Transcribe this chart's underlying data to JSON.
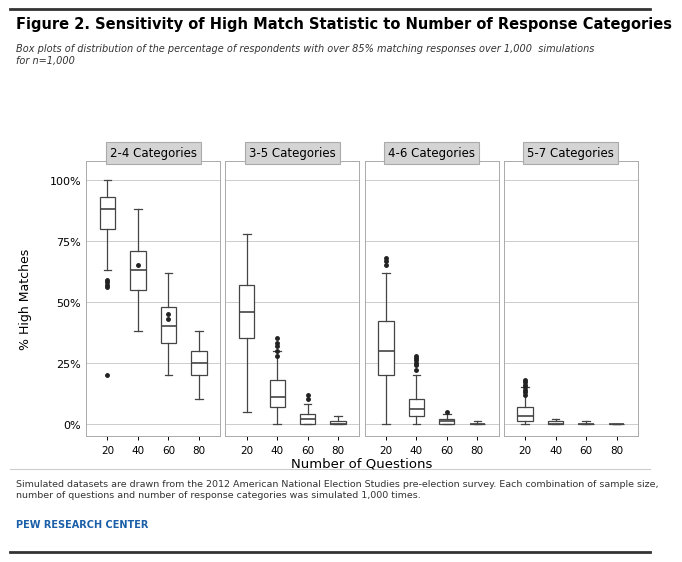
{
  "title": "Figure 2. Sensitivity of High Match Statistic to Number of Response Categories",
  "subtitle": "Box plots of distribution of the percentage of respondents with over 85% matching responses over 1,000  simulations\nfor n=1,000",
  "footnote": "Simulated datasets are drawn from the 2012 American National Election Studies pre-election survey. Each combination of sample size,\nnumber of questions and number of response categories was simulated 1,000 times.",
  "source": "PEW RESEARCH CENTER",
  "xlabel": "Number of Questions",
  "ylabel": "% High Matches",
  "panels": [
    "2-4 Categories",
    "3-5 Categories",
    "4-6 Categories",
    "5-7 Categories"
  ],
  "x_labels": [
    "20",
    "40",
    "60",
    "80"
  ],
  "ylim": [
    -5,
    108
  ],
  "yticks": [
    0,
    25,
    50,
    75,
    100
  ],
  "ytick_labels": [
    "0%",
    "25%",
    "50%",
    "75%",
    "100%"
  ],
  "background_color": "#ffffff",
  "panel_title_bg": "#d4d4d4",
  "box_face": "#ffffff",
  "box_edge": "#444444",
  "whisker_color": "#444444",
  "median_color": "#444444",
  "flier_color": "#222222",
  "grid_color": "#cccccc",
  "panel_data": [
    {
      "name": "2-4 Categories",
      "boxes": [
        {
          "q1": 80,
          "median": 88,
          "q3": 93,
          "whislo": 63,
          "whishi": 100,
          "fliers_low": [
            56,
            57,
            58,
            59,
            20
          ],
          "fliers_high": []
        },
        {
          "q1": 55,
          "median": 63,
          "q3": 71,
          "whislo": 38,
          "whishi": 88,
          "fliers_low": [],
          "fliers_high": [
            65
          ]
        },
        {
          "q1": 33,
          "median": 40,
          "q3": 48,
          "whislo": 20,
          "whishi": 62,
          "fliers_low": [],
          "fliers_high": [
            43,
            45
          ]
        },
        {
          "q1": 20,
          "median": 25,
          "q3": 30,
          "whislo": 10,
          "whishi": 38,
          "fliers_low": [],
          "fliers_high": []
        }
      ]
    },
    {
      "name": "3-5 Categories",
      "boxes": [
        {
          "q1": 35,
          "median": 46,
          "q3": 57,
          "whislo": 5,
          "whishi": 78,
          "fliers_low": [],
          "fliers_high": []
        },
        {
          "q1": 7,
          "median": 11,
          "q3": 18,
          "whislo": 0,
          "whishi": 30,
          "fliers_low": [],
          "fliers_high": [
            28,
            30,
            32,
            33,
            35
          ]
        },
        {
          "q1": 0,
          "median": 2,
          "q3": 4,
          "whislo": 0,
          "whishi": 8,
          "fliers_low": [],
          "fliers_high": [
            10,
            12
          ]
        },
        {
          "q1": 0,
          "median": 0,
          "q3": 1,
          "whislo": 0,
          "whishi": 3,
          "fliers_low": [],
          "fliers_high": []
        }
      ]
    },
    {
      "name": "4-6 Categories",
      "boxes": [
        {
          "q1": 20,
          "median": 30,
          "q3": 42,
          "whislo": 0,
          "whishi": 62,
          "fliers_low": [],
          "fliers_high": [
            65,
            67,
            68
          ]
        },
        {
          "q1": 3,
          "median": 6,
          "q3": 10,
          "whislo": 0,
          "whishi": 20,
          "fliers_low": [],
          "fliers_high": [
            22,
            24,
            25,
            26,
            27,
            28
          ]
        },
        {
          "q1": 0,
          "median": 1,
          "q3": 2,
          "whislo": 0,
          "whishi": 4,
          "fliers_low": [],
          "fliers_high": [
            5
          ]
        },
        {
          "q1": 0,
          "median": 0,
          "q3": 0,
          "whislo": 0,
          "whishi": 1,
          "fliers_low": [],
          "fliers_high": []
        }
      ]
    },
    {
      "name": "5-7 Categories",
      "boxes": [
        {
          "q1": 1,
          "median": 3,
          "q3": 7,
          "whislo": 0,
          "whishi": 15,
          "fliers_low": [],
          "fliers_high": [
            12,
            13,
            14,
            15,
            16,
            17,
            18
          ]
        },
        {
          "q1": 0,
          "median": 0,
          "q3": 1,
          "whislo": 0,
          "whishi": 2,
          "fliers_low": [],
          "fliers_high": []
        },
        {
          "q1": 0,
          "median": 0,
          "q3": 0,
          "whislo": 0,
          "whishi": 1,
          "fliers_low": [],
          "fliers_high": []
        },
        {
          "q1": 0,
          "median": 0,
          "q3": 0,
          "whislo": 0,
          "whishi": 0,
          "fliers_low": [],
          "fliers_high": []
        }
      ]
    }
  ]
}
